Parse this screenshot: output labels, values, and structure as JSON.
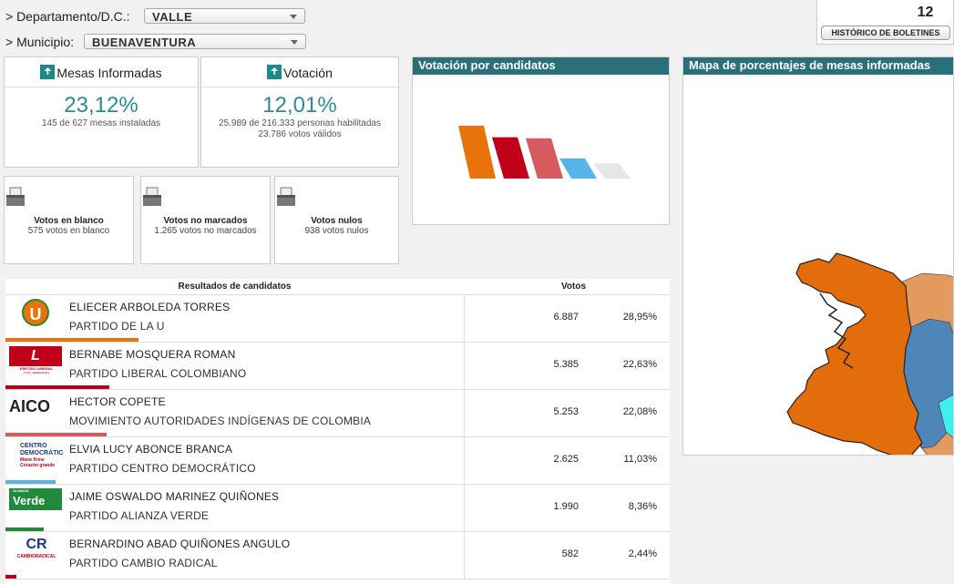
{
  "filters": {
    "departamento_label": "> Departamento/D.C.:",
    "departamento_value": "VALLE",
    "municipio_label": "> Municipio:",
    "municipio_value": "BUENAVENTURA"
  },
  "historico": {
    "count": "12",
    "button_label": "HISTÓRICO DE BOLETINES"
  },
  "mesas": {
    "title": "Mesas Informadas",
    "percent": "23,12%",
    "detail": "145 de 627 mesas instaladas"
  },
  "votacion": {
    "title": "Votación",
    "percent": "12,01%",
    "detail1": "25.989 de 216.333 personas habilitadas",
    "detail2": "23.786 votos válidos"
  },
  "blanco": {
    "title": "Votos en blanco",
    "detail": "575 votos en blanco"
  },
  "no_marcados": {
    "title": "Votos no marcados",
    "detail": "1.265 votos no marcados"
  },
  "nulos": {
    "title": "Votos nulos",
    "detail": "938 votos nulos"
  },
  "chart_panel": {
    "title": "Votación por candidatos"
  },
  "map_panel": {
    "title": "Mapa de porcentajes de mesas informadas"
  },
  "chart_data": {
    "type": "bar",
    "categories": [
      "PARTIDO DE LA U",
      "PARTIDO LIBERAL COLOMBIANO",
      "MOVIMIENTO AUTORIDADES INDÍGENAS DE COLOMBIA",
      "PARTIDO CENTRO DEMOCRÁTICO",
      "PARTIDO ALIANZA VERDE"
    ],
    "values": [
      28.95,
      22.63,
      22.08,
      11.03,
      8.36
    ],
    "colors": [
      "#e8730a",
      "#c0001a",
      "#d65a5e",
      "#58b4e6",
      "#e6e6e6"
    ]
  },
  "results": {
    "header_candidates": "Resultados de candidatos",
    "header_votes": "Votos",
    "rows": [
      {
        "name": "ELIECER ARBOLEDA TORRES",
        "party": "PARTIDO DE LA U",
        "votes": "6.887",
        "pct": "28,95%",
        "color": "#e8730a",
        "bar": 28.95,
        "logo": "U"
      },
      {
        "name": "BERNABE MOSQUERA ROMAN",
        "party": "PARTIDO LIBERAL COLOMBIANO",
        "votes": "5.385",
        "pct": "22,63%",
        "color": "#c0001a",
        "bar": 22.63,
        "logo": "L",
        "logo_caption": "PARTIDO LIBERAL COLOMBIANO"
      },
      {
        "name": "HECTOR COPETE",
        "party": "MOVIMIENTO AUTORIDADES INDÍGENAS DE COLOMBIA",
        "votes": "5.253",
        "pct": "22,08%",
        "color": "#d65a5e",
        "bar": 22.08,
        "logo": "AICO"
      },
      {
        "name": "ELVIA LUCY ABONCE BRANCA",
        "party": "PARTIDO CENTRO DEMOCRÁTICO",
        "votes": "2.625",
        "pct": "11,03%",
        "color": "#58b4e6",
        "bar": 11.03,
        "logo": "CENTRO DEMOCRÁTICO",
        "logo_caption": "Mano firme Corazón grande"
      },
      {
        "name": "JAIME OSWALDO MARINEZ QUIÑONES",
        "party": "PARTIDO ALIANZA VERDE",
        "votes": "1.990",
        "pct": "8,36%",
        "color": "#1e8a3a",
        "bar": 8.36,
        "logo": "Verde",
        "logo_caption": "ALIANZA"
      },
      {
        "name": "BERNARDINO ABAD QUIÑONES ANGULO",
        "party": "PARTIDO CAMBIO RADICAL",
        "votes": "582",
        "pct": "2,44%",
        "color": "#c0001a",
        "bar": 2.44,
        "logo": "CR",
        "logo_caption": "CAMBIORADICAL"
      }
    ]
  }
}
